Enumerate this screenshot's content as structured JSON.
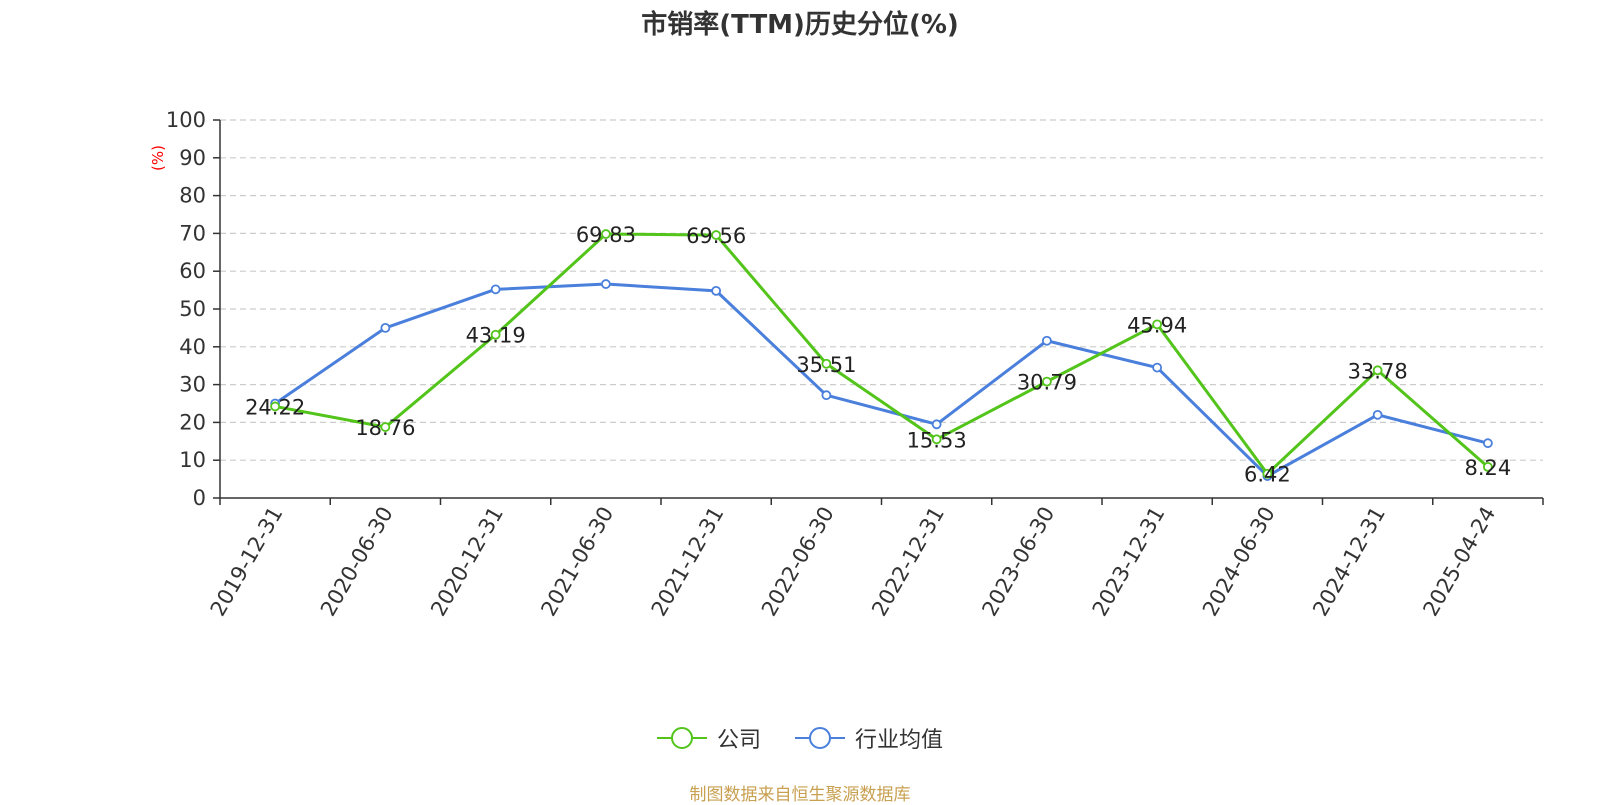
{
  "chart_data": {
    "type": "line",
    "title": "市销率(TTM)历史分位(%)",
    "ylabel": "(%)",
    "xlabel": "",
    "ylim": [
      0,
      100
    ],
    "yticks": [
      0,
      10,
      20,
      30,
      40,
      50,
      60,
      70,
      80,
      90,
      100
    ],
    "categories": [
      "2019-12-31",
      "2020-06-30",
      "2020-12-31",
      "2021-06-30",
      "2021-12-31",
      "2022-06-30",
      "2022-12-31",
      "2023-06-30",
      "2023-12-31",
      "2024-06-30",
      "2024-12-31",
      "2025-04-24"
    ],
    "grid": true,
    "legend_position": "bottom",
    "series": [
      {
        "name": "公司",
        "color": "#52c41a",
        "values": [
          24.22,
          18.76,
          43.19,
          69.83,
          69.56,
          35.51,
          15.53,
          30.79,
          45.94,
          6.42,
          33.78,
          8.24
        ],
        "data_labels": [
          "24.22",
          "18.76",
          "43.19",
          "69.83",
          "69.56",
          "35.51",
          "15.53",
          "30.79",
          "45.94",
          "6.42",
          "33.78",
          "8.24"
        ]
      },
      {
        "name": "行业均值",
        "color": "#4a7fdc",
        "values": [
          25.0,
          45.0,
          55.2,
          56.6,
          54.8,
          27.2,
          19.5,
          41.6,
          34.5,
          5.8,
          22.0,
          14.5
        ]
      }
    ]
  },
  "source_text": "制图数据来自恒生聚源数据库",
  "colors": {
    "title": "#333333",
    "axis": "#333333",
    "grid": "#cccccc",
    "ylabel": "#ff0000",
    "source": "#c8a050"
  }
}
